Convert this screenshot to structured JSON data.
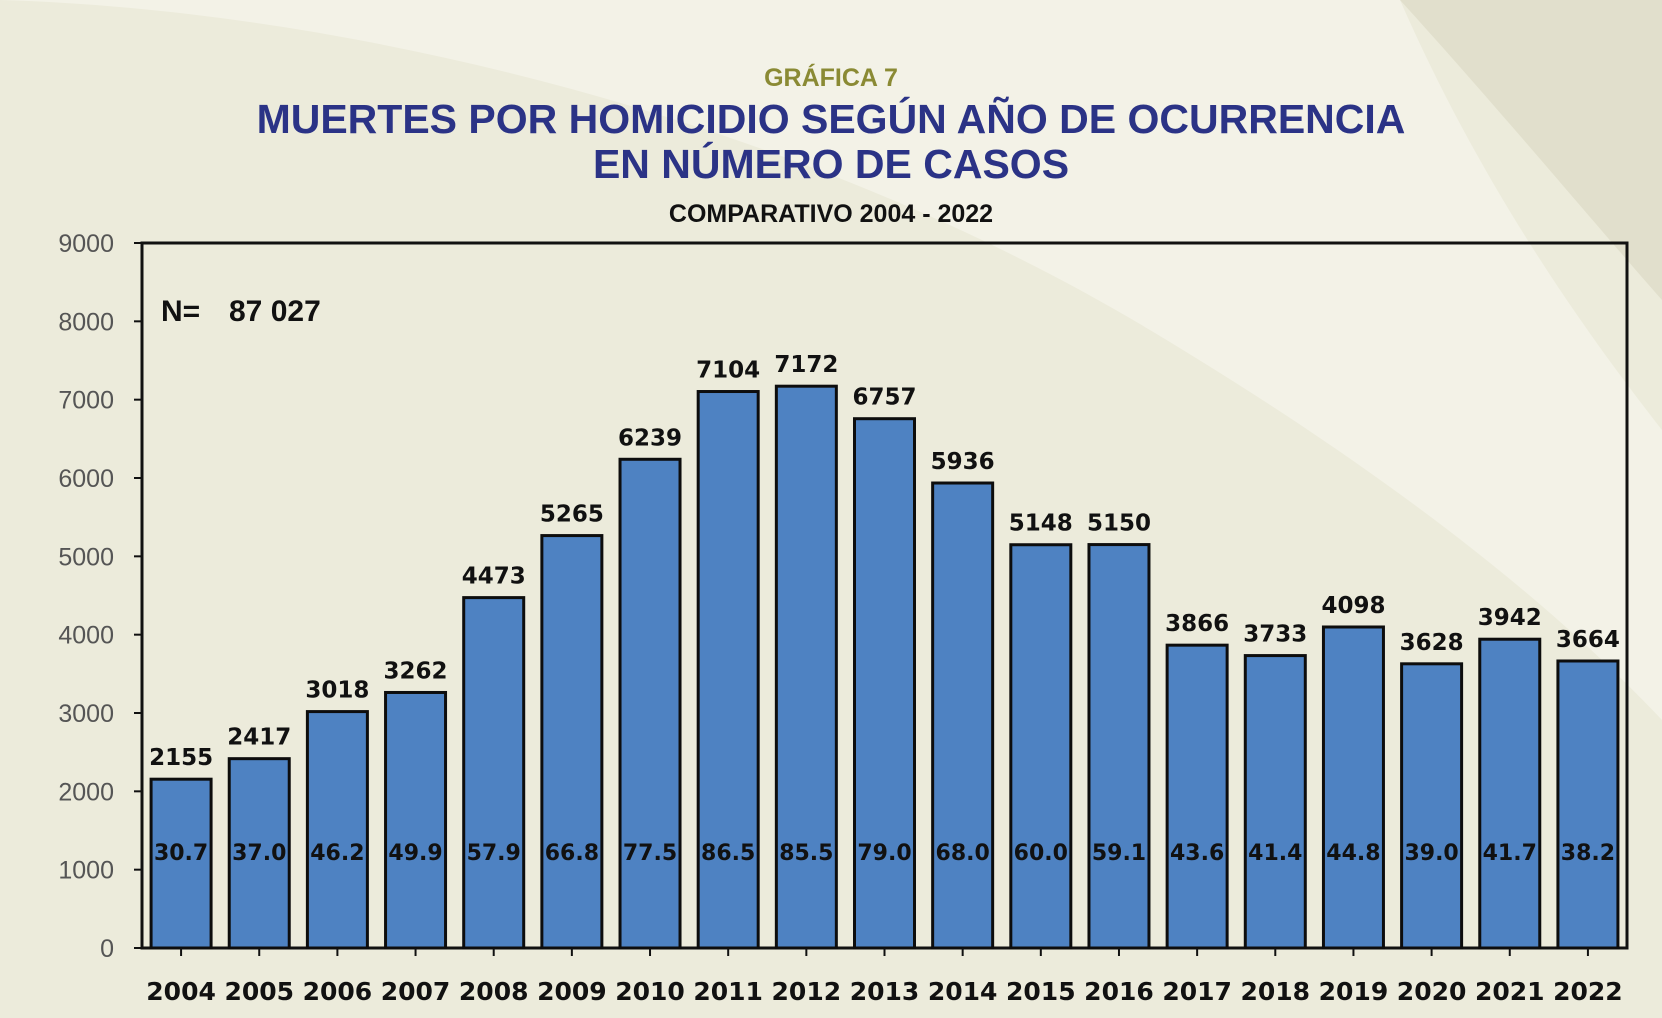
{
  "header": {
    "eyebrow": "GRÁFICA 7",
    "title_line1": "MUERTES POR HOMICIDIO SEGÚN AÑO DE OCURRENCIA",
    "title_line2": "EN  NÚMERO DE CASOS",
    "subtitle": "COMPARATIVO  2004  - 2022"
  },
  "chart_data": {
    "type": "bar",
    "title": "MUERTES POR HOMICIDIO SEGÚN AÑO DE OCURRENCIA EN NÚMERO DE CASOS",
    "subtitle": "COMPARATIVO 2004 - 2022",
    "xlabel": "",
    "ylabel": "",
    "ylim": [
      0,
      9000
    ],
    "yticks": [
      0,
      1000,
      2000,
      3000,
      4000,
      5000,
      6000,
      7000,
      8000,
      9000
    ],
    "grid": false,
    "legend": "none",
    "annotation": {
      "label": "N=",
      "value": "87 027"
    },
    "categories": [
      "2004",
      "2005",
      "2006",
      "2007",
      "2008",
      "2009",
      "2010",
      "2011",
      "2012",
      "2013",
      "2014",
      "2015",
      "2016",
      "2017",
      "2018",
      "2019",
      "2020",
      "2021",
      "2022"
    ],
    "values": [
      2155,
      2417,
      3018,
      3262,
      4473,
      5265,
      6239,
      7104,
      7172,
      6757,
      5936,
      5148,
      5150,
      3866,
      3733,
      4098,
      3628,
      3942,
      3664
    ],
    "rates": [
      "30.7",
      "37.0",
      "46.2",
      "49.9",
      "57.9",
      "66.8",
      "77.5",
      "86.5",
      "85.5",
      "79.0",
      "68.0",
      "60.0",
      "59.1",
      "43.6",
      "41.4",
      "44.8",
      "39.0",
      "41.7",
      "38.2"
    ],
    "colors": {
      "bar": "#4e82c2",
      "bar_stroke": "#0d0d0d",
      "axis_text": "#555555",
      "label_text": "#111111"
    }
  }
}
